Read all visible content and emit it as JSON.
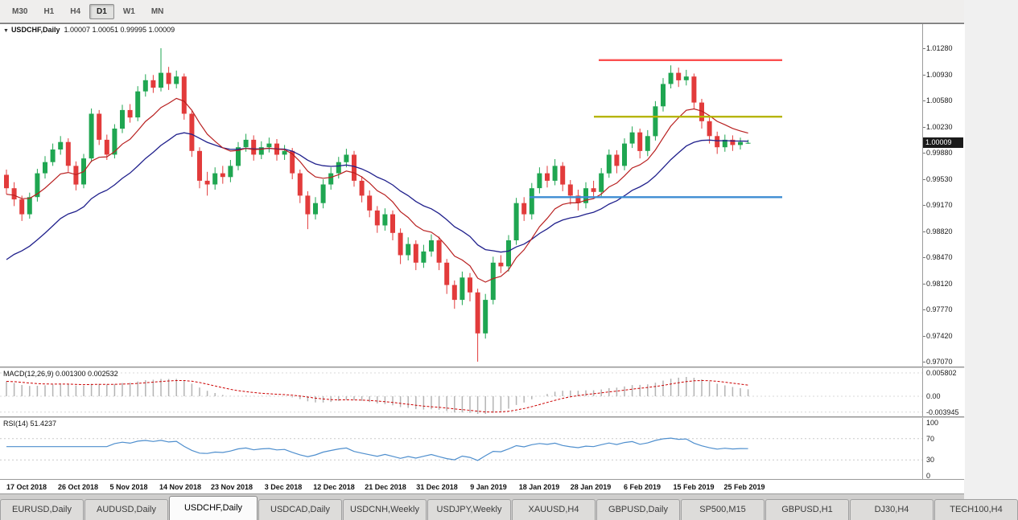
{
  "toolbar": {
    "timeframes": [
      {
        "label": "M30",
        "active": false
      },
      {
        "label": "H1",
        "active": false
      },
      {
        "label": "H4",
        "active": false
      },
      {
        "label": "D1",
        "active": true
      },
      {
        "label": "W1",
        "active": false
      },
      {
        "label": "MN",
        "active": false
      }
    ]
  },
  "price_pane": {
    "title": "USDCHF,Daily",
    "ohlc": "1.00007 1.00051 0.99995 1.00009",
    "price_label": "1.00009",
    "y_labels": [
      "1.01280",
      "1.00930",
      "1.00580",
      "1.00230",
      "0.99880",
      "0.99530",
      "0.99170",
      "0.98820",
      "0.98470",
      "0.98120",
      "0.97770",
      "0.97420",
      "0.97070"
    ]
  },
  "macd_pane": {
    "label": "MACD(12,26,9) 0.001300 0.002532",
    "y_ticks": [
      {
        "label": "0.005802",
        "value": 0.005802
      },
      {
        "label": "0.00",
        "value": 0.0
      },
      {
        "label": "-0.003945",
        "value": -0.003945
      }
    ]
  },
  "rsi_pane": {
    "label": "RSI(14) 51.4237",
    "y_ticks": [
      {
        "label": "100",
        "value": 100
      },
      {
        "label": "70",
        "value": 70
      },
      {
        "label": "30",
        "value": 30
      },
      {
        "label": "0",
        "value": 0
      }
    ]
  },
  "x_axis": {
    "labels": [
      "17 Oct 2018",
      "26 Oct 2018",
      "5 Nov 2018",
      "14 Nov 2018",
      "23 Nov 2018",
      "3 Dec 2018",
      "12 Dec 2018",
      "21 Dec 2018",
      "31 Dec 2018",
      "9 Jan 2019",
      "18 Jan 2019",
      "28 Jan 2019",
      "6 Feb 2019",
      "15 Feb 2019",
      "25 Feb 2019"
    ]
  },
  "tabs": {
    "items": [
      {
        "label": "EURUSD,Daily",
        "active": false
      },
      {
        "label": "AUDUSD,Daily",
        "active": false
      },
      {
        "label": "USDCHF,Daily",
        "active": true
      },
      {
        "label": "USDCAD,Daily",
        "active": false
      },
      {
        "label": "USDCNH,Weekly",
        "active": false
      },
      {
        "label": "USDJPY,Weekly",
        "active": false
      },
      {
        "label": "XAUUSD,H4",
        "active": false
      },
      {
        "label": "GBPUSD,Daily",
        "active": false
      },
      {
        "label": "SP500,M15",
        "active": false
      },
      {
        "label": "GBPUSD,H1",
        "active": false
      },
      {
        "label": "DJ30,H4",
        "active": false
      },
      {
        "label": "TECH100,H4",
        "active": false
      }
    ]
  },
  "chart_data": {
    "type": "candlestick",
    "title": "USDCHF,Daily",
    "symbol": "USDCHF",
    "timeframe": "Daily",
    "current_ohlc": {
      "open": 1.00007,
      "high": 1.00051,
      "low": 0.99995,
      "close": 1.00009
    },
    "y_range": [
      0.9707,
      1.0128
    ],
    "x_labels": [
      "17 Oct 2018",
      "26 Oct 2018",
      "5 Nov 2018",
      "14 Nov 2018",
      "23 Nov 2018",
      "3 Dec 2018",
      "12 Dec 2018",
      "21 Dec 2018",
      "31 Dec 2018",
      "9 Jan 2019",
      "18 Jan 2019",
      "28 Jan 2019",
      "6 Feb 2019",
      "15 Feb 2019",
      "25 Feb 2019"
    ],
    "colors": {
      "up": "#1fa651",
      "down": "#e23b3b",
      "ma_fast": "#b81f1f",
      "ma_slow": "#20208c",
      "hline_red": "#fb4f4f",
      "hline_olive": "#b6b400",
      "hline_blue": "#3d8cd2",
      "macd_hist": "#b4b4b4",
      "macd_signal": "#cc0000",
      "rsi_line": "#4f8fce"
    },
    "candles_ohlc": [
      [
        0.9958,
        0.9965,
        0.9932,
        0.994
      ],
      [
        0.994,
        0.9948,
        0.9916,
        0.9925
      ],
      [
        0.9925,
        0.993,
        0.9896,
        0.9905
      ],
      [
        0.9905,
        0.9934,
        0.9899,
        0.9928
      ],
      [
        0.9928,
        0.9966,
        0.9922,
        0.996
      ],
      [
        0.996,
        0.9983,
        0.9953,
        0.9975
      ],
      [
        0.9975,
        1.0,
        0.997,
        0.9992
      ],
      [
        0.9992,
        1.001,
        0.9985,
        1.0002
      ],
      [
        1.0002,
        1.0007,
        0.9962,
        0.997
      ],
      [
        0.997,
        0.9976,
        0.9937,
        0.9945
      ],
      [
        0.9945,
        0.9986,
        0.994,
        0.998
      ],
      [
        0.998,
        1.0047,
        0.9975,
        1.004
      ],
      [
        1.004,
        1.0045,
        0.9998,
        1.0005
      ],
      [
        1.0005,
        1.0012,
        0.9978,
        0.9985
      ],
      [
        0.9985,
        1.0026,
        0.998,
        1.002
      ],
      [
        1.002,
        1.0052,
        1.0014,
        1.0045
      ],
      [
        1.0045,
        1.0053,
        1.0028,
        1.0035
      ],
      [
        1.0035,
        1.0077,
        1.003,
        1.007
      ],
      [
        1.007,
        1.0093,
        1.0063,
        1.0085
      ],
      [
        1.0085,
        1.0092,
        1.0068,
        1.0075
      ],
      [
        1.0075,
        1.0128,
        1.007,
        1.0095
      ],
      [
        1.0095,
        1.0103,
        1.0072,
        1.008
      ],
      [
        1.008,
        1.0098,
        1.0074,
        1.009
      ],
      [
        1.009,
        1.0094,
        1.0032,
        1.004
      ],
      [
        1.004,
        1.0044,
        0.9982,
        0.999
      ],
      [
        0.999,
        0.9995,
        0.994,
        0.995
      ],
      [
        0.995,
        0.9962,
        0.993,
        0.9945
      ],
      [
        0.9945,
        0.9968,
        0.9938,
        0.996
      ],
      [
        0.996,
        0.997,
        0.9946,
        0.9955
      ],
      [
        0.9955,
        0.9978,
        0.9948,
        0.997
      ],
      [
        0.997,
        1.0002,
        0.9964,
        0.9995
      ],
      [
        0.9995,
        1.0013,
        0.9989,
        1.0005
      ],
      [
        1.0005,
        1.0011,
        0.9977,
        0.9985
      ],
      [
        0.9985,
        1.0003,
        0.9979,
        0.9995
      ],
      [
        0.9995,
        1.0008,
        0.9988,
        1.0
      ],
      [
        1.0,
        1.0006,
        0.9977,
        0.9985
      ],
      [
        0.9985,
        0.9998,
        0.9978,
        0.999
      ],
      [
        0.999,
        0.9994,
        0.9952,
        0.996
      ],
      [
        0.996,
        0.9965,
        0.992,
        0.993
      ],
      [
        0.993,
        0.9936,
        0.9885,
        0.9905
      ],
      [
        0.9905,
        0.9928,
        0.9898,
        0.992
      ],
      [
        0.992,
        0.9952,
        0.9913,
        0.9945
      ],
      [
        0.9945,
        0.9968,
        0.9938,
        0.996
      ],
      [
        0.996,
        0.9982,
        0.9953,
        0.9975
      ],
      [
        0.9975,
        0.9993,
        0.9968,
        0.9985
      ],
      [
        0.9985,
        0.999,
        0.9942,
        0.995
      ],
      [
        0.995,
        0.9956,
        0.9921,
        0.993
      ],
      [
        0.993,
        0.9937,
        0.9901,
        0.991
      ],
      [
        0.991,
        0.9916,
        0.988,
        0.989
      ],
      [
        0.989,
        0.9913,
        0.9883,
        0.9905
      ],
      [
        0.9905,
        0.991,
        0.987,
        0.988
      ],
      [
        0.988,
        0.9886,
        0.9838,
        0.985
      ],
      [
        0.985,
        0.9874,
        0.9843,
        0.9865
      ],
      [
        0.9865,
        0.987,
        0.983,
        0.984
      ],
      [
        0.984,
        0.9864,
        0.9833,
        0.9855
      ],
      [
        0.9855,
        0.9878,
        0.9848,
        0.987
      ],
      [
        0.987,
        0.9875,
        0.983,
        0.984
      ],
      [
        0.984,
        0.9845,
        0.9798,
        0.981
      ],
      [
        0.981,
        0.9816,
        0.9778,
        0.979
      ],
      [
        0.979,
        0.9828,
        0.9783,
        0.982
      ],
      [
        0.982,
        0.9826,
        0.9788,
        0.98
      ],
      [
        0.98,
        0.9805,
        0.9707,
        0.9745
      ],
      [
        0.9745,
        0.9798,
        0.9738,
        0.979
      ],
      [
        0.979,
        0.9848,
        0.9784,
        0.984
      ],
      [
        0.984,
        0.985,
        0.9826,
        0.9835
      ],
      [
        0.9835,
        0.9877,
        0.9828,
        0.987
      ],
      [
        0.987,
        0.9927,
        0.9864,
        0.992
      ],
      [
        0.992,
        0.9928,
        0.9896,
        0.9905
      ],
      [
        0.9905,
        0.9947,
        0.9898,
        0.994
      ],
      [
        0.994,
        0.9968,
        0.9933,
        0.996
      ],
      [
        0.996,
        0.997,
        0.9941,
        0.995
      ],
      [
        0.995,
        0.9979,
        0.9944,
        0.997
      ],
      [
        0.997,
        0.9975,
        0.9936,
        0.9945
      ],
      [
        0.9945,
        0.9951,
        0.9918,
        0.993
      ],
      [
        0.993,
        0.9938,
        0.991,
        0.992
      ],
      [
        0.992,
        0.9948,
        0.9913,
        0.994
      ],
      [
        0.994,
        0.995,
        0.9926,
        0.9935
      ],
      [
        0.9935,
        0.9967,
        0.9929,
        0.996
      ],
      [
        0.996,
        0.9992,
        0.9954,
        0.9985
      ],
      [
        0.9985,
        0.9991,
        0.996,
        0.997
      ],
      [
        0.997,
        1.0007,
        0.9964,
        1.0
      ],
      [
        1.0,
        1.0023,
        0.9994,
        1.0015
      ],
      [
        1.0015,
        1.002,
        0.998,
        0.999
      ],
      [
        0.999,
        1.0018,
        0.9983,
        1.001
      ],
      [
        1.001,
        1.0057,
        1.0004,
        1.005
      ],
      [
        1.005,
        1.0088,
        1.0043,
        1.008
      ],
      [
        1.008,
        1.0105,
        1.0074,
        1.0095
      ],
      [
        1.0095,
        1.0102,
        1.0076,
        1.0085
      ],
      [
        1.0085,
        1.0099,
        1.0078,
        1.009
      ],
      [
        1.009,
        1.0094,
        1.0046,
        1.0055
      ],
      [
        1.0055,
        1.006,
        1.002,
        1.003
      ],
      [
        1.003,
        1.0036,
        1.0,
        1.001
      ],
      [
        1.001,
        1.0016,
        0.9986,
        0.9995
      ],
      [
        0.9995,
        1.0012,
        0.9989,
        1.0005
      ],
      [
        1.0005,
        1.0011,
        0.999,
        0.9998
      ],
      [
        0.9998,
        1.0008,
        0.9992,
        1.0002
      ],
      [
        1.00007,
        1.00051,
        0.99995,
        1.00009
      ]
    ],
    "overlays": {
      "moving_averages": [
        {
          "name": "ma-fast",
          "period": 10,
          "init": 0.993
        },
        {
          "name": "ma-slow",
          "period": 22,
          "init": 0.9835
        }
      ],
      "hlines": [
        {
          "name": "resistance-line",
          "price": 1.0112,
          "color_key": "hline_red",
          "x1": 744,
          "x2": 972
        },
        {
          "name": "pivot-line",
          "price": 1.0036,
          "color_key": "hline_olive",
          "x1": 738,
          "x2": 972
        },
        {
          "name": "support-line",
          "price": 0.9928,
          "color_key": "hline_blue",
          "x1": 658,
          "x2": 972
        }
      ]
    },
    "indicators": [
      {
        "type": "macd",
        "params": [
          12,
          26,
          9
        ],
        "current_values": [
          0.0013,
          0.002532
        ],
        "y_ticks": [
          0.005802,
          0.0,
          -0.003945
        ],
        "range": [
          -0.0039,
          0.0058
        ]
      },
      {
        "type": "rsi",
        "params": [
          14
        ],
        "current_value": 51.4237,
        "y_ticks": [
          100,
          70,
          30,
          0
        ],
        "levels": [
          70,
          30
        ]
      }
    ]
  }
}
